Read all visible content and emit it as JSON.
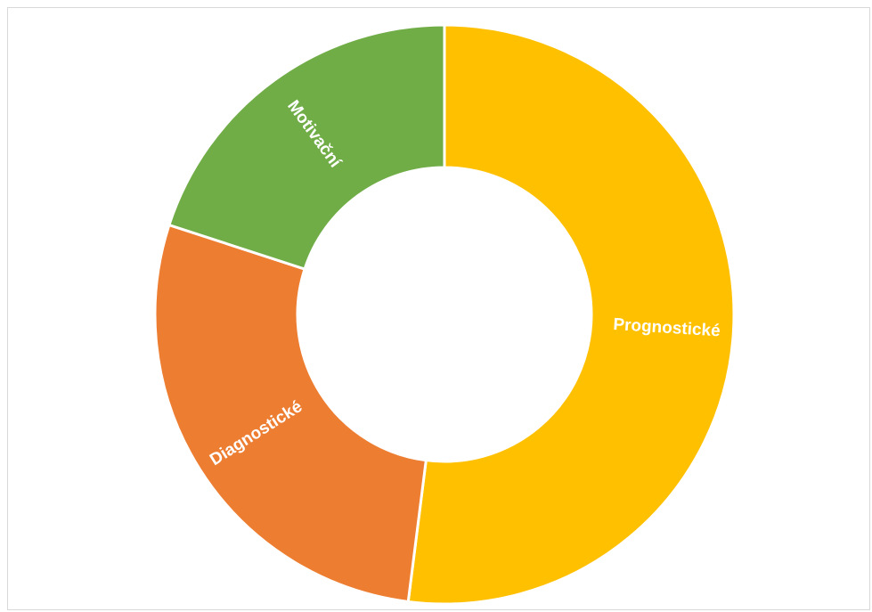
{
  "chart_data": {
    "type": "donut",
    "title": "",
    "series": [
      {
        "categories": [
          "Prognostické",
          "Diagnostické",
          "Motivační"
        ],
        "values": [
          52,
          28,
          20
        ],
        "colors": [
          "#FFC000",
          "#ED7D31",
          "#70AD47"
        ]
      }
    ],
    "legend": "none",
    "slice_border_color": "#ffffff",
    "background": "#ffffff"
  }
}
